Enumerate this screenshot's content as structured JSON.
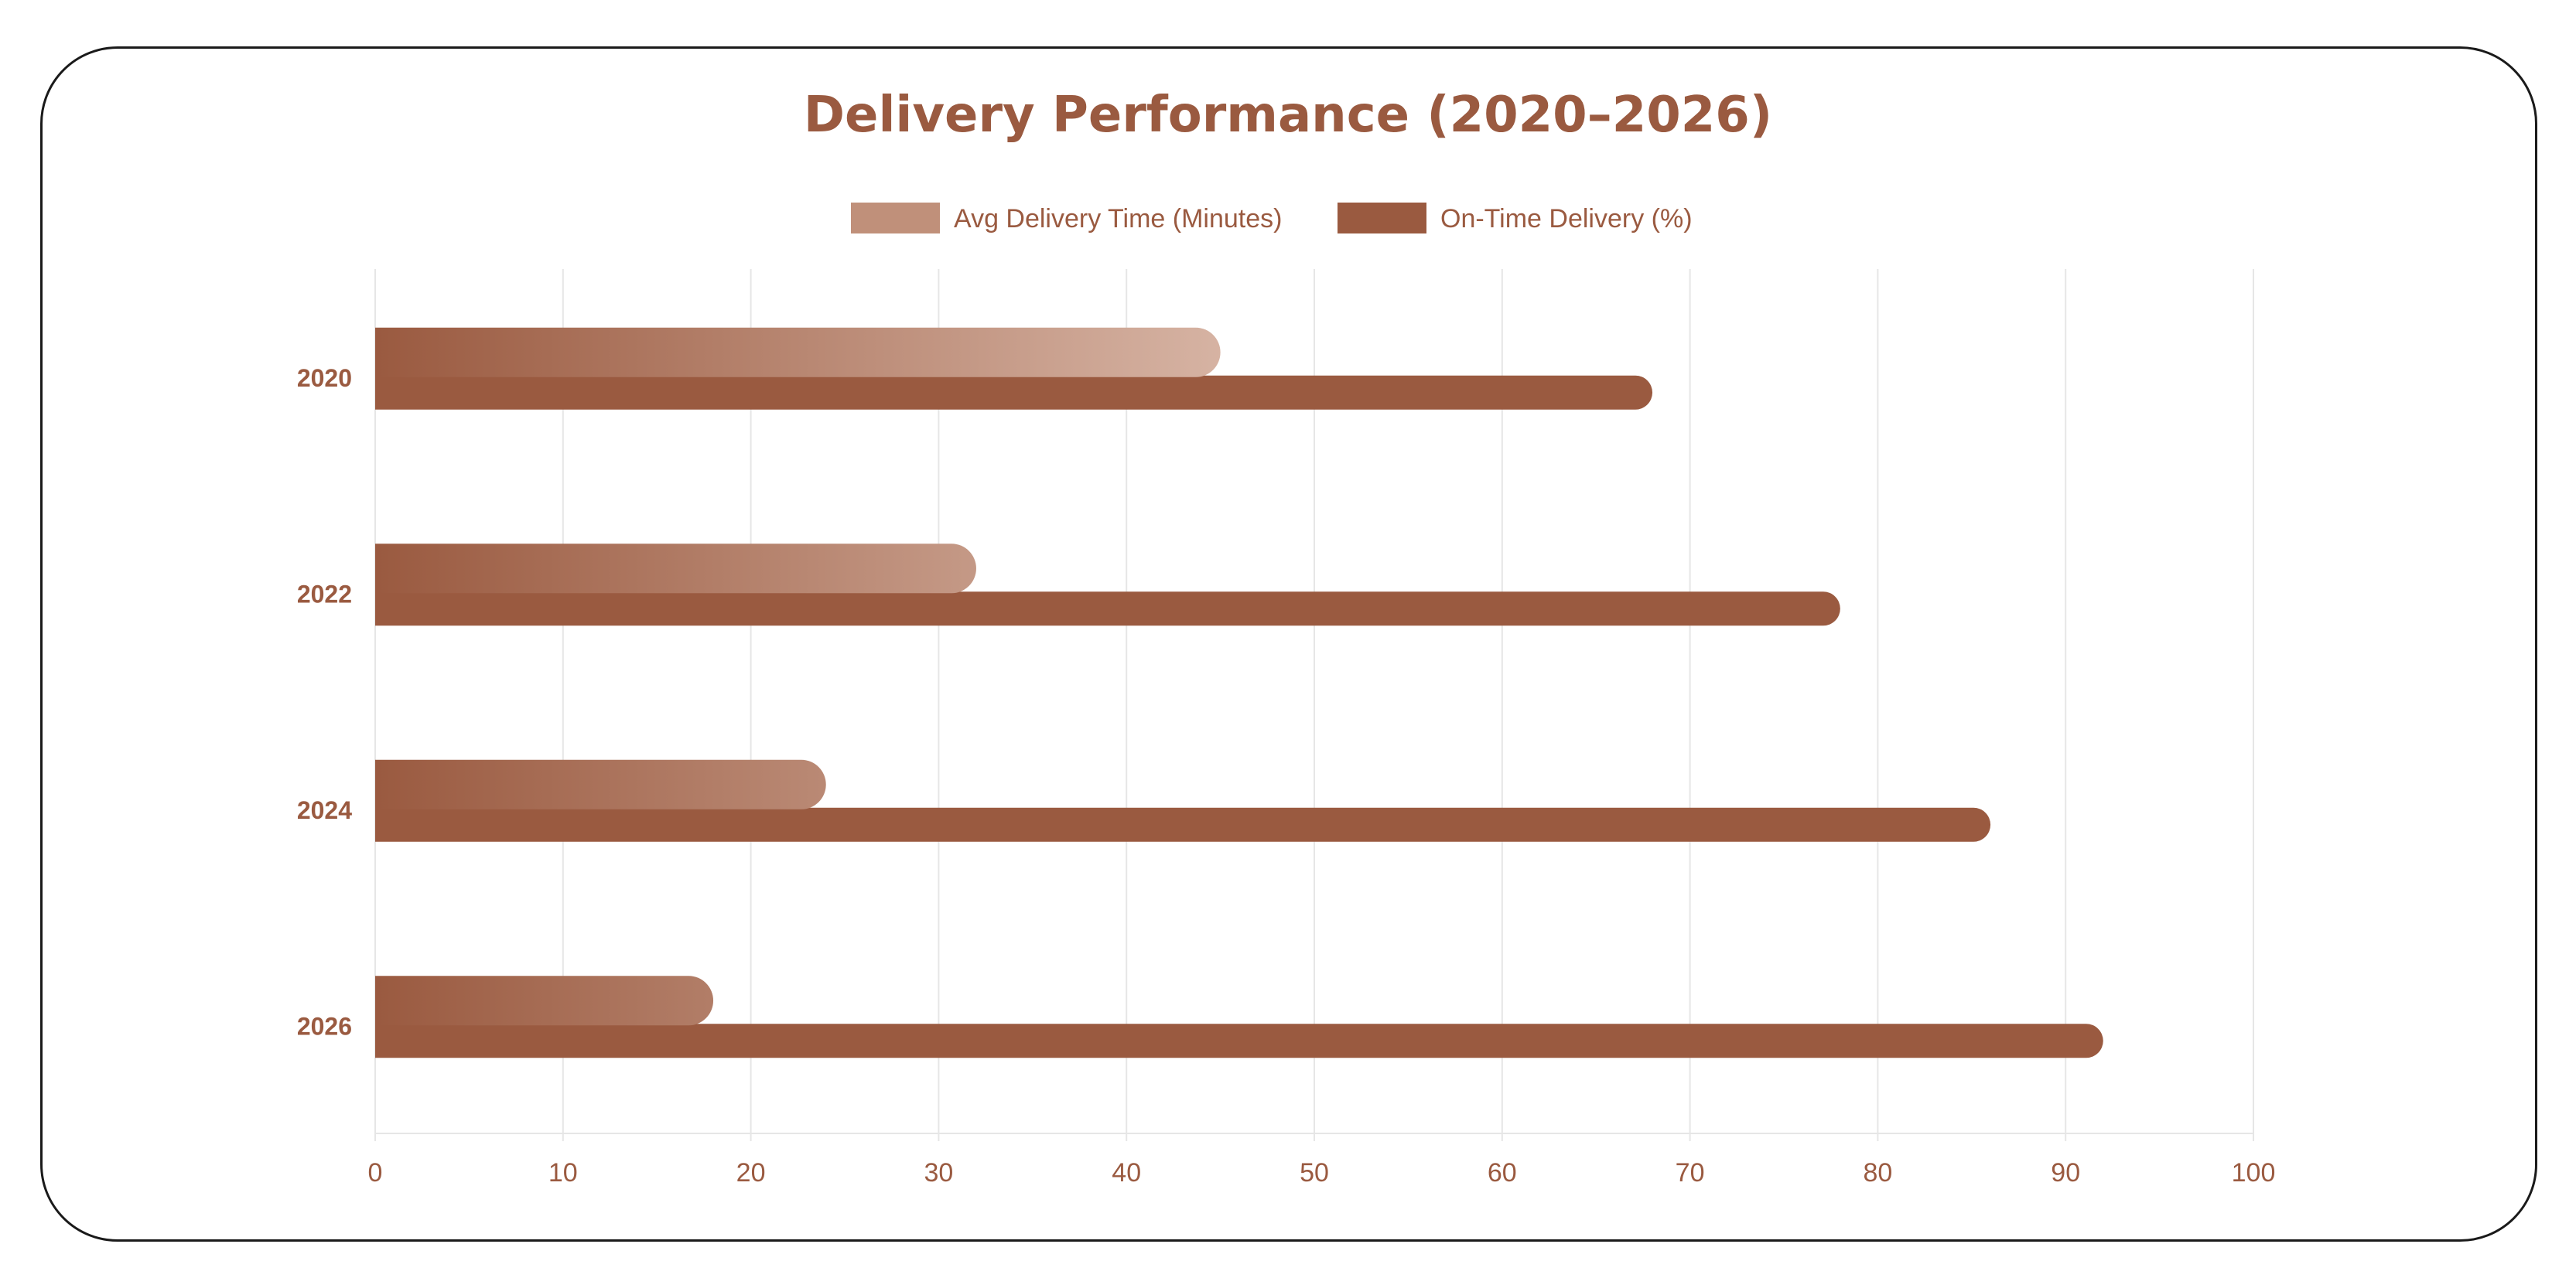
{
  "chart_data": {
    "type": "bar",
    "orientation": "horizontal",
    "title": "Delivery Performance (2020–2026)",
    "categories": [
      "2020",
      "2022",
      "2024",
      "2026"
    ],
    "series": [
      {
        "name": "Avg Delivery Time (Minutes)",
        "values": [
          45,
          32,
          24,
          18
        ],
        "color": "#c0907a"
      },
      {
        "name": "On-Time Delivery (%)",
        "values": [
          68,
          78,
          86,
          92
        ],
        "color": "#9a5a40"
      }
    ],
    "xlim": [
      0,
      100
    ],
    "xticks": [
      0,
      10,
      20,
      30,
      40,
      50,
      60,
      70,
      80,
      90,
      100
    ],
    "grid": true,
    "legend_position": "top-center"
  },
  "colors": {
    "title": "#9a5a40",
    "axis_text": "#9a5a40",
    "grid": "#e6e6e6",
    "gradient_start": "#9a5a40",
    "gradient_end": "#d6b3a3"
  }
}
